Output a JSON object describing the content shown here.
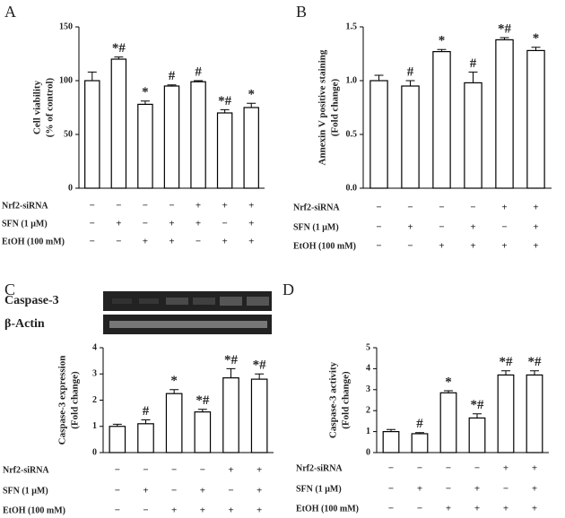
{
  "chart_data": [
    {
      "type": "bar",
      "panel": "A",
      "ylabel": [
        "Cell viability",
        "(% of control)"
      ],
      "categories": [
        null,
        null,
        null,
        null,
        null,
        null,
        null
      ],
      "values": [
        100,
        120,
        78,
        95,
        99,
        70,
        75
      ],
      "errors": [
        8,
        2,
        3,
        1,
        1,
        3,
        4
      ],
      "annotations": [
        null,
        "*#",
        "*",
        "#",
        "#",
        "*#",
        "*"
      ],
      "ylim": [
        0,
        150
      ],
      "yticks": [
        0,
        50,
        100,
        150
      ],
      "color": "#ffffff",
      "treatments": [
        {
          "name": "Nrf2-siRNA",
          "marks": [
            "−",
            "−",
            "−",
            "−",
            "+",
            "+",
            "+"
          ]
        },
        {
          "name": "SFN (1 μM)",
          "marks": [
            "−",
            "+",
            "−",
            "+",
            "+",
            "−",
            "+"
          ]
        },
        {
          "name": "EtOH (100 mM)",
          "marks": [
            "−",
            "−",
            "+",
            "+",
            "−",
            "+",
            "+"
          ]
        }
      ]
    },
    {
      "type": "bar",
      "panel": "B",
      "ylabel": [
        "Annexin V positive staining",
        "(Fold change)"
      ],
      "categories": [
        null,
        null,
        null,
        null,
        null,
        null
      ],
      "values": [
        1.0,
        0.95,
        1.27,
        0.98,
        1.38,
        1.28
      ],
      "errors": [
        0.05,
        0.05,
        0.02,
        0.1,
        0.02,
        0.03
      ],
      "annotations": [
        null,
        "#",
        "*",
        "#",
        "*#",
        "*"
      ],
      "ylim": [
        0,
        1.5
      ],
      "yticks": [
        {
          "value": 0,
          "label": "0.0"
        },
        {
          "value": 0.5,
          "label": "0.5"
        },
        {
          "value": 1,
          "label": "1.0"
        },
        {
          "value": 1.5,
          "label": "1.5"
        }
      ],
      "color": "#ffffff",
      "treatments": [
        {
          "name": "Nrf2-siRNA",
          "marks": [
            "−",
            "−",
            "−",
            "−",
            "+",
            "+"
          ]
        },
        {
          "name": "SFN (1 μM)",
          "marks": [
            "−",
            "+",
            "−",
            "+",
            "−",
            "+"
          ]
        },
        {
          "name": "EtOH (100 mM)",
          "marks": [
            "−",
            "−",
            "+",
            "+",
            "+",
            "+"
          ]
        }
      ]
    },
    {
      "type": "bar",
      "panel": "C",
      "ylabel": [
        "Caspase-3 expression",
        "(Fold change)"
      ],
      "blot_labels": [
        "Caspase-3",
        "β-Actin"
      ],
      "categories": [
        null,
        null,
        null,
        null,
        null,
        null
      ],
      "values": [
        1.0,
        1.1,
        2.25,
        1.55,
        2.85,
        2.8
      ],
      "errors": [
        0.08,
        0.15,
        0.15,
        0.1,
        0.35,
        0.2
      ],
      "annotations": [
        null,
        "#",
        "*",
        "*#",
        "*#",
        "*#"
      ],
      "ylim": [
        0,
        4
      ],
      "yticks": [
        0,
        1,
        2,
        3,
        4
      ],
      "color": "#ffffff",
      "treatments": [
        {
          "name": "Nrf2-siRNA",
          "marks": [
            "−",
            "−",
            "−",
            "−",
            "+",
            "+"
          ]
        },
        {
          "name": "SFN (1 μM)",
          "marks": [
            "−",
            "+",
            "−",
            "+",
            "−",
            "+"
          ]
        },
        {
          "name": "EtOH (100 mM)",
          "marks": [
            "−",
            "−",
            "+",
            "+",
            "+",
            "+"
          ]
        }
      ]
    },
    {
      "type": "bar",
      "panel": "D",
      "ylabel": [
        "Caspase-3 activity",
        "(Fold change)"
      ],
      "categories": [
        null,
        null,
        null,
        null,
        null,
        null
      ],
      "values": [
        1.0,
        0.9,
        2.85,
        1.65,
        3.7,
        3.7
      ],
      "errors": [
        0.1,
        0.05,
        0.1,
        0.2,
        0.2,
        0.2
      ],
      "annotations": [
        null,
        "#",
        "*",
        "*#",
        "*#",
        "*#"
      ],
      "ylim": [
        0,
        5
      ],
      "yticks": [
        0,
        1,
        2,
        3,
        4,
        5
      ],
      "color": "#ffffff",
      "treatments": [
        {
          "name": "Nrf2-siRNA",
          "marks": [
            "−",
            "−",
            "−",
            "−",
            "+",
            "+"
          ]
        },
        {
          "name": "SFN (1 μM)",
          "marks": [
            "−",
            "+",
            "−",
            "+",
            "−",
            "+"
          ]
        },
        {
          "name": "EtOH (100 mM)",
          "marks": [
            "−",
            "−",
            "+",
            "+",
            "+",
            "+"
          ]
        }
      ]
    }
  ]
}
